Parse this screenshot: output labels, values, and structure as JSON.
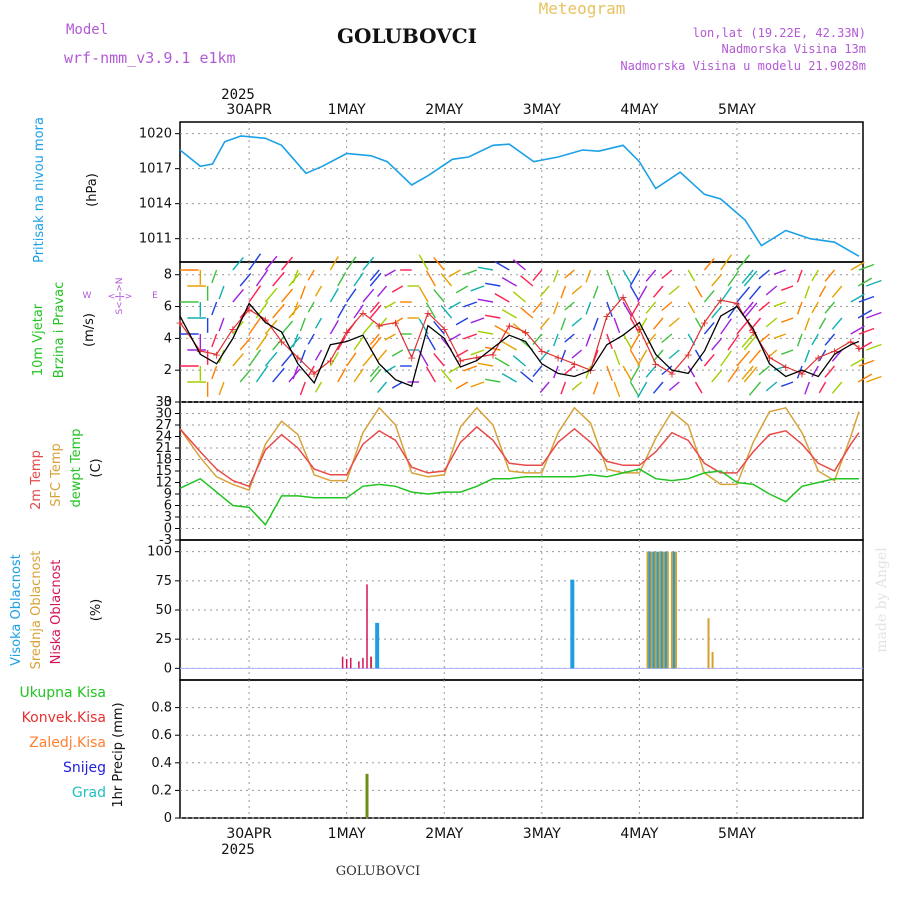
{
  "header": {
    "title": "GOLUBOVCI",
    "subtitle": "Meteogram",
    "model_label": "Model",
    "model_name": "wrf-nmm_v3.9.1 e1km",
    "location": "lon,lat (19.22E, 42.33N)",
    "elevation": "Nadmorska Visina 13m",
    "model_elevation": "Nadmorska Visina u modelu 21.9028m",
    "footer_title": "GOLUBOVCI",
    "watermark": "made by Angel"
  },
  "time_axis": {
    "year": "2025",
    "days": [
      "30APR",
      "1MAY",
      "2MAY",
      "3MAY",
      "4MAY",
      "5MAY"
    ],
    "hours_range": [
      0,
      144
    ]
  },
  "colors": {
    "pressure": "#1ca0e6",
    "t2m": "#e84a4a",
    "sfc": "#d8a23a",
    "dewpoint": "#22c322",
    "high_cloud": "#1f9fe0",
    "mid_cloud": "#d6a030",
    "low_cloud": "#d4145a",
    "precip": "#6a8f1a",
    "wind_speed": "#000000",
    "gust": "#e03030"
  },
  "panels": {
    "pressure": {
      "ylabel_1": "Pritisak na nivou mora",
      "unit": "(hPa)",
      "ticks": [
        "1011",
        "1014",
        "1017",
        "1020"
      ]
    },
    "wind": {
      "ylabel_1": "10m Vjetar",
      "ylabel_2": "Brzina i Pravac",
      "unit": "(m/s)",
      "ticks": [
        "0",
        "2",
        "4",
        "6",
        "8"
      ],
      "compass": {
        "n": "N",
        "w": "W",
        "e": "E",
        "s": "S"
      }
    },
    "temperature": {
      "ylabel_1": "2m Temp",
      "ylabel_2": "SFC Temp",
      "ylabel_3": "dewpt Temp",
      "unit": "(C)",
      "ticks": [
        "-3",
        "0",
        "3",
        "6",
        "9",
        "12",
        "15",
        "18",
        "21",
        "24",
        "27",
        "30",
        "33"
      ]
    },
    "clouds": {
      "ylabel_1": "Visoka Oblacnost",
      "ylabel_2": "Srednja Oblacnost",
      "ylabel_3": "Niska Oblacnost",
      "unit": "(%)",
      "ticks": [
        "0",
        "25",
        "50",
        "75",
        "100"
      ]
    },
    "precip": {
      "ylabel": "1hr Precip (mm)",
      "ticks": [
        "0",
        "0.2",
        "0.4",
        "0.6",
        "0.8"
      ],
      "legend": [
        "Ukupna Kisa",
        "Konvek.Kisa",
        "Zaledj.Kisa",
        "Snijeg",
        "Grad"
      ]
    }
  },
  "chart_data": {
    "type": "line",
    "x_unit": "hours from 30APR 00UTC",
    "pressure": {
      "ylim": [
        1009,
        1021
      ],
      "x": [
        -5,
        0,
        3,
        6,
        10,
        16,
        20,
        26,
        30,
        36,
        42,
        46,
        52,
        56,
        62,
        66,
        72,
        76,
        82,
        88,
        94,
        98,
        104,
        108,
        112,
        118,
        124,
        128,
        134,
        138,
        144,
        150,
        156,
        162
      ],
      "values": [
        1018.6,
        1017.2,
        1017.4,
        1019.3,
        1019.8,
        1019.6,
        1019.0,
        1016.6,
        1017.2,
        1018.3,
        1018.1,
        1017.6,
        1015.6,
        1016.4,
        1017.8,
        1018.0,
        1019.0,
        1019.1,
        1017.6,
        1018.0,
        1018.6,
        1018.5,
        1019.0,
        1017.6,
        1015.3,
        1016.7,
        1014.8,
        1014.4,
        1012.6,
        1010.4,
        1011.7,
        1011.0,
        1010.7,
        1009.5
      ]
    },
    "wind": {
      "ylim": [
        0,
        8.8
      ],
      "x": [
        -5,
        0,
        4,
        8,
        12,
        16,
        20,
        24,
        28,
        32,
        36,
        40,
        44,
        48,
        52,
        56,
        60,
        64,
        68,
        72,
        76,
        80,
        84,
        88,
        92,
        96,
        100,
        104,
        108,
        112,
        116,
        120,
        124,
        128,
        132,
        136,
        140,
        144,
        148,
        152,
        156,
        160,
        162
      ],
      "speed": [
        5.4,
        3.0,
        2.4,
        4.0,
        6.2,
        5.0,
        4.4,
        2.4,
        1.2,
        3.6,
        3.8,
        4.2,
        2.4,
        1.4,
        1.0,
        4.8,
        4.0,
        2.2,
        2.6,
        3.4,
        4.2,
        3.8,
        2.4,
        1.8,
        1.6,
        2.0,
        3.6,
        4.2,
        5.0,
        3.0,
        2.0,
        1.8,
        3.2,
        5.4,
        6.0,
        4.6,
        2.4,
        1.6,
        2.0,
        1.6,
        3.0,
        3.6,
        3.8
      ],
      "gust": [
        5.0,
        3.2,
        3.0,
        4.6,
        5.8,
        5.2,
        3.8,
        2.8,
        1.8,
        2.6,
        4.4,
        5.6,
        4.8,
        5.0,
        2.8,
        5.6,
        4.6,
        2.6,
        2.8,
        3.0,
        4.8,
        4.4,
        3.2,
        2.8,
        2.4,
        2.0,
        5.4,
        6.6,
        4.6,
        2.4,
        1.8,
        3.0,
        5.0,
        6.4,
        6.2,
        4.4,
        2.8,
        2.2,
        1.8,
        2.8,
        3.2,
        3.8,
        3.4
      ],
      "direction_deg": [
        90,
        180,
        200,
        40,
        35,
        40,
        40,
        200,
        210,
        30,
        35,
        40,
        220,
        240,
        270,
        330,
        320,
        240,
        250,
        280,
        300,
        310,
        220,
        200,
        230,
        200,
        160,
        150,
        210,
        220,
        230,
        150,
        40,
        35,
        40,
        220,
        230,
        250,
        200,
        210,
        220,
        60,
        70
      ]
    },
    "temperature": {
      "ylim": [
        -3,
        33
      ],
      "x": [
        -5,
        0,
        4,
        8,
        12,
        16,
        20,
        24,
        28,
        32,
        36,
        40,
        44,
        48,
        52,
        56,
        60,
        64,
        68,
        72,
        76,
        80,
        84,
        88,
        92,
        96,
        100,
        104,
        108,
        112,
        116,
        120,
        124,
        128,
        132,
        136,
        140,
        144,
        148,
        152,
        156,
        160,
        162
      ],
      "t2m": [
        26.0,
        20.0,
        15.5,
        12.5,
        11.0,
        20.5,
        24.5,
        21.0,
        15.5,
        14.0,
        14.0,
        22.0,
        25.5,
        23.0,
        16.0,
        14.5,
        15.0,
        22.5,
        26.5,
        23.0,
        17.0,
        16.5,
        16.5,
        22.5,
        26.0,
        22.5,
        17.5,
        16.5,
        16.5,
        20.0,
        25.0,
        23.0,
        17.0,
        14.5,
        14.5,
        20.0,
        24.5,
        25.5,
        22.0,
        17.0,
        15.0,
        22.0,
        25.0
      ],
      "sfc": [
        26.0,
        18.5,
        13.5,
        11.5,
        10.0,
        22.0,
        28.0,
        24.5,
        14.0,
        12.5,
        12.5,
        25.0,
        31.5,
        27.0,
        14.5,
        13.5,
        14.0,
        26.5,
        31.5,
        27.0,
        15.0,
        14.5,
        14.5,
        25.0,
        31.5,
        27.5,
        15.5,
        14.5,
        14.5,
        23.5,
        30.5,
        27.0,
        14.5,
        11.5,
        11.5,
        22.5,
        30.5,
        31.5,
        25.0,
        15.0,
        12.5,
        24.0,
        30.5
      ],
      "dewpt": [
        10.5,
        13.0,
        9.5,
        6.0,
        5.5,
        1.0,
        8.5,
        8.5,
        8.0,
        8.0,
        8.0,
        11.0,
        11.5,
        11.0,
        9.5,
        9.0,
        9.5,
        9.5,
        11.0,
        13.0,
        13.0,
        13.5,
        13.5,
        13.5,
        13.5,
        14.0,
        13.5,
        14.5,
        15.5,
        13.0,
        12.5,
        13.0,
        14.5,
        15.0,
        12.0,
        11.5,
        9.0,
        7.0,
        11.0,
        12.0,
        13.0,
        13.0,
        13.0
      ]
    },
    "clouds": {
      "ylim": [
        0,
        100
      ],
      "high": [
        {
          "x": 43.5,
          "v": 39
        },
        {
          "x": 91.5,
          "v": 76
        },
        {
          "x": 110.5,
          "v": 100
        },
        {
          "x": 111.5,
          "v": 100
        },
        {
          "x": 112.5,
          "v": 100
        },
        {
          "x": 113.5,
          "v": 100
        },
        {
          "x": 114.5,
          "v": 100
        },
        {
          "x": 116.5,
          "v": 100
        }
      ],
      "mid": [
        {
          "x": 110,
          "v": 100
        },
        {
          "x": 111,
          "v": 100
        },
        {
          "x": 112,
          "v": 100
        },
        {
          "x": 113,
          "v": 100
        },
        {
          "x": 114,
          "v": 100
        },
        {
          "x": 115,
          "v": 100
        },
        {
          "x": 116,
          "v": 100
        },
        {
          "x": 117,
          "v": 100
        },
        {
          "x": 125,
          "v": 43
        },
        {
          "x": 126,
          "v": 14
        },
        {
          "x": 42,
          "v": 10
        }
      ],
      "low": [
        {
          "x": 35,
          "v": 10
        },
        {
          "x": 36,
          "v": 8
        },
        {
          "x": 37,
          "v": 9
        },
        {
          "x": 39,
          "v": 6
        },
        {
          "x": 40,
          "v": 9
        },
        {
          "x": 41,
          "v": 72
        },
        {
          "x": 42,
          "v": 10
        }
      ]
    },
    "precip": {
      "ylim": [
        0,
        1.0
      ],
      "total": [
        {
          "x": 41,
          "v": 0.32
        }
      ]
    }
  }
}
